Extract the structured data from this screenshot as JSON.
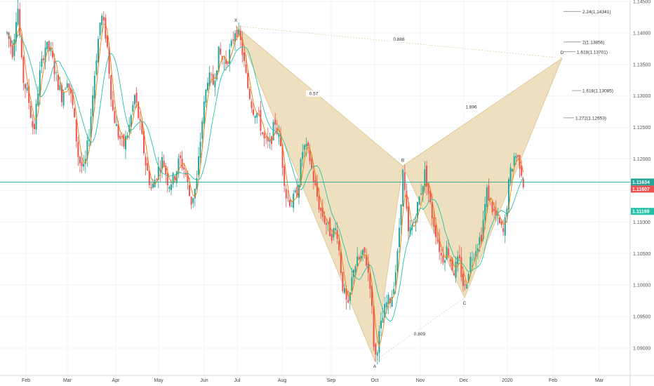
{
  "chart_data": {
    "type": "candlestick",
    "instrument_hint": "EURUSD",
    "y_axis": {
      "ylim": [
        1.0855,
        1.1455
      ],
      "ticks": [
        "1.14500",
        "1.14000",
        "1.13500",
        "1.13000",
        "1.12500",
        "1.12000",
        "1.11500",
        "1.11000",
        "1.10500",
        "1.10000",
        "1.09500",
        "1.09000"
      ],
      "tick_values": [
        1.145,
        1.14,
        1.135,
        1.13,
        1.125,
        1.12,
        1.115,
        1.11,
        1.105,
        1.1,
        1.095,
        1.09
      ]
    },
    "x_axis": {
      "months": [
        "Feb",
        "Mar",
        "Apr",
        "May",
        "Jun",
        "Jul",
        "Aug",
        "Sep",
        "Oct",
        "Nov",
        "Dec",
        "2020",
        "Feb",
        "Mar"
      ],
      "month_day_index": [
        27,
        86,
        155,
        216,
        281,
        328,
        392,
        462,
        524,
        589,
        651,
        713,
        778,
        844
      ]
    },
    "price_tags": [
      {
        "text": "1.11634",
        "value": 1.11634,
        "color": "#26a69a"
      },
      {
        "text": "1.11607",
        "value": 1.11607,
        "color": "#ef5350"
      },
      {
        "text": "1.11169",
        "value": 1.11169,
        "color": "#26c0a8"
      }
    ],
    "horizontal_line": {
      "value": 1.11634,
      "color": "#26a69a"
    },
    "harmonic_pattern": {
      "points": [
        {
          "label": "X",
          "day": 326,
          "value": 1.1411
        },
        {
          "label": "A",
          "day": 524,
          "value": 1.088
        },
        {
          "label": "B",
          "day": 564,
          "value": 1.1189
        },
        {
          "label": "C",
          "day": 652,
          "value": 1.098
        },
        {
          "label": "D",
          "day": 791,
          "value": 1.136
        }
      ],
      "ratios": [
        {
          "text": "0.888",
          "from": "X",
          "to": "D"
        },
        {
          "text": "0.57",
          "from": "X",
          "to": "B"
        },
        {
          "text": "1.896",
          "from": "B",
          "to": "D"
        },
        {
          "text": "0.809",
          "from": "A",
          "to": "C"
        }
      ],
      "fill": "#e8d5a8"
    },
    "fib_levels": [
      {
        "text": "2.24(1.14341)",
        "value": 1.14341
      },
      {
        "text": "2(1.13856)",
        "value": 1.13856
      },
      {
        "text": "1.618(1.13701)",
        "value": 1.13701
      },
      {
        "text": "1.618(1.13085)",
        "value": 1.13085
      },
      {
        "text": "1.272(1.12653)",
        "value": 1.12653
      }
    ],
    "ohlc_path": [
      [
        0,
        1.14
      ],
      [
        8,
        1.137
      ],
      [
        15,
        1.145
      ],
      [
        22,
        1.133
      ],
      [
        30,
        1.13
      ],
      [
        38,
        1.124
      ],
      [
        46,
        1.133
      ],
      [
        54,
        1.138
      ],
      [
        62,
        1.137
      ],
      [
        70,
        1.133
      ],
      [
        78,
        1.13
      ],
      [
        86,
        1.133
      ],
      [
        94,
        1.128
      ],
      [
        102,
        1.12
      ],
      [
        110,
        1.118
      ],
      [
        118,
        1.125
      ],
      [
        126,
        1.135
      ],
      [
        134,
        1.143
      ],
      [
        142,
        1.139
      ],
      [
        150,
        1.128
      ],
      [
        158,
        1.124
      ],
      [
        166,
        1.122
      ],
      [
        174,
        1.125
      ],
      [
        182,
        1.13
      ],
      [
        190,
        1.125
      ],
      [
        198,
        1.119
      ],
      [
        206,
        1.115
      ],
      [
        214,
        1.118
      ],
      [
        222,
        1.12
      ],
      [
        230,
        1.116
      ],
      [
        238,
        1.117
      ],
      [
        246,
        1.12
      ],
      [
        254,
        1.118
      ],
      [
        262,
        1.113
      ],
      [
        270,
        1.116
      ],
      [
        278,
        1.126
      ],
      [
        286,
        1.133
      ],
      [
        294,
        1.132
      ],
      [
        302,
        1.137
      ],
      [
        310,
        1.135
      ],
      [
        318,
        1.137
      ],
      [
        326,
        1.141
      ],
      [
        334,
        1.138
      ],
      [
        342,
        1.132
      ],
      [
        350,
        1.128
      ],
      [
        358,
        1.127
      ],
      [
        366,
        1.123
      ],
      [
        374,
        1.122
      ],
      [
        382,
        1.126
      ],
      [
        390,
        1.122
      ],
      [
        398,
        1.114
      ],
      [
        406,
        1.113
      ],
      [
        414,
        1.115
      ],
      [
        422,
        1.122
      ],
      [
        430,
        1.121
      ],
      [
        438,
        1.116
      ],
      [
        446,
        1.112
      ],
      [
        454,
        1.11
      ],
      [
        462,
        1.108
      ],
      [
        470,
        1.109
      ],
      [
        478,
        1.1
      ],
      [
        486,
        1.096
      ],
      [
        494,
        1.103
      ],
      [
        502,
        1.104
      ],
      [
        510,
        1.105
      ],
      [
        518,
        1.1
      ],
      [
        524,
        1.088
      ],
      [
        532,
        1.093
      ],
      [
        540,
        1.097
      ],
      [
        548,
        1.098
      ],
      [
        556,
        1.104
      ],
      [
        564,
        1.118
      ],
      [
        572,
        1.108
      ],
      [
        580,
        1.11
      ],
      [
        588,
        1.114
      ],
      [
        596,
        1.118
      ],
      [
        604,
        1.112
      ],
      [
        612,
        1.108
      ],
      [
        620,
        1.104
      ],
      [
        628,
        1.106
      ],
      [
        636,
        1.102
      ],
      [
        644,
        1.104
      ],
      [
        652,
        1.099
      ],
      [
        660,
        1.104
      ],
      [
        668,
        1.106
      ],
      [
        676,
        1.108
      ],
      [
        684,
        1.115
      ],
      [
        692,
        1.112
      ],
      [
        700,
        1.11
      ],
      [
        708,
        1.108
      ],
      [
        716,
        1.117
      ],
      [
        724,
        1.121
      ],
      [
        732,
        1.119
      ],
      [
        736,
        1.116
      ]
    ]
  }
}
